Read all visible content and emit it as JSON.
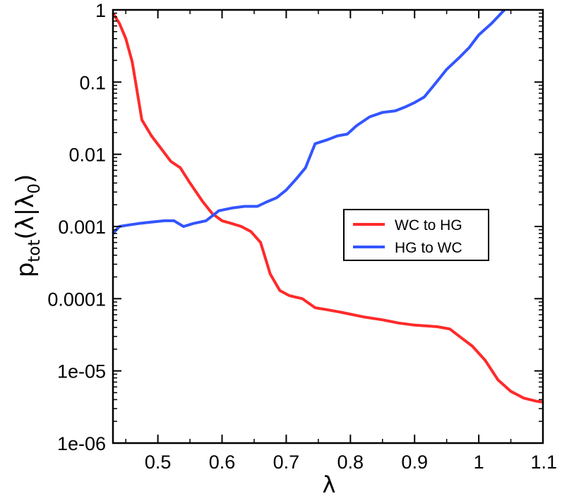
{
  "chart_data": {
    "type": "line",
    "xlabel": "λ",
    "ylabel": {
      "base": "p",
      "sub1": "tot",
      "mid": "(λ|λ",
      "sub2": "0",
      "end": ")"
    },
    "xlim": [
      0.43,
      1.1
    ],
    "ylim": [
      1e-06,
      1
    ],
    "yscale": "log",
    "grid": false,
    "legend_position": "right",
    "x_ticks": [
      {
        "value": 0.5,
        "label": "0.5"
      },
      {
        "value": 0.6,
        "label": "0.6"
      },
      {
        "value": 0.7,
        "label": "0.7"
      },
      {
        "value": 0.8,
        "label": "0.8"
      },
      {
        "value": 0.9,
        "label": "0.9"
      },
      {
        "value": 1.0,
        "label": "1"
      },
      {
        "value": 1.1,
        "label": "1.1"
      }
    ],
    "y_ticks": [
      {
        "value": 1,
        "label": "1"
      },
      {
        "value": 0.1,
        "label": "0.1"
      },
      {
        "value": 0.01,
        "label": "0.01"
      },
      {
        "value": 0.001,
        "label": "0.001"
      },
      {
        "value": 0.0001,
        "label": "0.0001"
      },
      {
        "value": 1e-05,
        "label": "1e-05"
      },
      {
        "value": 1e-06,
        "label": "1e-06"
      }
    ],
    "series": [
      {
        "name": "WC to HG",
        "color": "#ff2a2a",
        "x": [
          0.43,
          0.44,
          0.45,
          0.46,
          0.475,
          0.49,
          0.505,
          0.52,
          0.535,
          0.55,
          0.57,
          0.585,
          0.6,
          0.615,
          0.63,
          0.645,
          0.66,
          0.675,
          0.69,
          0.705,
          0.725,
          0.745,
          0.765,
          0.785,
          0.82,
          0.85,
          0.875,
          0.9,
          0.935,
          0.955,
          0.97,
          0.99,
          1.01,
          1.03,
          1.05,
          1.07,
          1.09,
          1.1
        ],
        "y": [
          0.9,
          0.65,
          0.4,
          0.19,
          0.03,
          0.018,
          0.012,
          0.008,
          0.0065,
          0.004,
          0.0022,
          0.0015,
          0.0012,
          0.0011,
          0.001,
          0.00085,
          0.0006,
          0.00022,
          0.00013,
          0.00011,
          0.0001,
          7.5e-05,
          7e-05,
          6.5e-05,
          5.6e-05,
          5.1e-05,
          4.6e-05,
          4.3e-05,
          4.1e-05,
          3.8e-05,
          3e-05,
          2.2e-05,
          1.4e-05,
          7.5e-06,
          5.2e-06,
          4.2e-06,
          3.8e-06,
          3.7e-06
        ]
      },
      {
        "name": "HG to WC",
        "color": "#3355ff",
        "x": [
          0.43,
          0.44,
          0.455,
          0.47,
          0.49,
          0.51,
          0.525,
          0.54,
          0.555,
          0.575,
          0.595,
          0.615,
          0.635,
          0.655,
          0.67,
          0.685,
          0.7,
          0.715,
          0.73,
          0.745,
          0.765,
          0.78,
          0.795,
          0.81,
          0.83,
          0.85,
          0.87,
          0.885,
          0.9,
          0.915,
          0.93,
          0.95,
          0.97,
          0.985,
          1.0,
          1.02,
          1.04
        ],
        "y": [
          0.0008,
          0.001,
          0.00105,
          0.0011,
          0.00115,
          0.0012,
          0.0012,
          0.001,
          0.0011,
          0.0012,
          0.00165,
          0.0018,
          0.0019,
          0.0019,
          0.0022,
          0.0025,
          0.0032,
          0.0045,
          0.0065,
          0.014,
          0.016,
          0.018,
          0.019,
          0.025,
          0.033,
          0.038,
          0.04,
          0.045,
          0.052,
          0.062,
          0.09,
          0.15,
          0.22,
          0.3,
          0.45,
          0.65,
          1.0
        ]
      }
    ]
  }
}
